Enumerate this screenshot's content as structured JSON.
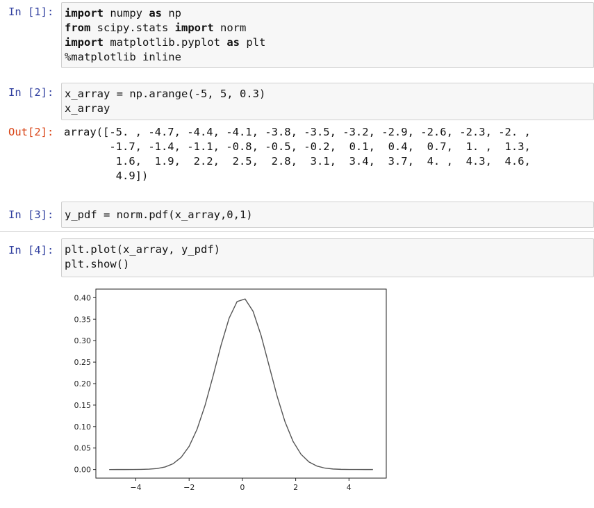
{
  "cells": [
    {
      "prompt": "In [1]:",
      "lines": [
        [
          {
            "t": "import",
            "kw": true
          },
          {
            "t": " numpy "
          },
          {
            "t": "as",
            "kw": true
          },
          {
            "t": " np"
          }
        ],
        [
          {
            "t": "from",
            "kw": true
          },
          {
            "t": " scipy.stats "
          },
          {
            "t": "import",
            "kw": true
          },
          {
            "t": " norm"
          }
        ],
        [
          {
            "t": "import",
            "kw": true
          },
          {
            "t": " matplotlib.pyplot "
          },
          {
            "t": "as",
            "kw": true
          },
          {
            "t": " plt"
          }
        ],
        [
          {
            "t": "%matplotlib inline"
          }
        ]
      ]
    },
    {
      "prompt": "In [2]:",
      "lines": [
        [
          {
            "t": "x_array = np.arange(-5, 5, 0.3)"
          }
        ],
        [
          {
            "t": "x_array"
          }
        ]
      ],
      "output_prompt": "Out[2]:",
      "output_lines": [
        "array([-5. , -4.7, -4.4, -4.1, -3.8, -3.5, -3.2, -2.9, -2.6, -2.3, -2. ,",
        "       -1.7, -1.4, -1.1, -0.8, -0.5, -0.2,  0.1,  0.4,  0.7,  1. ,  1.3,",
        "        1.6,  1.9,  2.2,  2.5,  2.8,  3.1,  3.4,  3.7,  4. ,  4.3,  4.6,",
        "        4.9])"
      ]
    },
    {
      "prompt": "In [3]:",
      "lines": [
        [
          {
            "t": "y_pdf = norm.pdf(x_array,0,1)"
          }
        ]
      ]
    },
    {
      "prompt": "In [4]:",
      "lines": [
        [
          {
            "t": "plt.plot(x_array, y_pdf)"
          }
        ],
        [
          {
            "t": "plt.show()"
          }
        ]
      ]
    }
  ],
  "chart_data": {
    "type": "line",
    "line_color": "#555555",
    "xlim": [
      -5.5,
      5.4
    ],
    "ylim": [
      -0.02,
      0.42
    ],
    "xticks": [
      -4,
      -2,
      0,
      2,
      4
    ],
    "xtick_labels": [
      "−4",
      "−2",
      "0",
      "2",
      "4"
    ],
    "yticks": [
      0.0,
      0.05,
      0.1,
      0.15,
      0.2,
      0.25,
      0.3,
      0.35,
      0.4
    ],
    "ytick_labels": [
      "0.00",
      "0.05",
      "0.10",
      "0.15",
      "0.20",
      "0.25",
      "0.30",
      "0.35",
      "0.40"
    ],
    "x": [
      -5.0,
      -4.7,
      -4.4,
      -4.1,
      -3.8,
      -3.5,
      -3.2,
      -2.9,
      -2.6,
      -2.3,
      -2.0,
      -1.7,
      -1.4,
      -1.1,
      -0.8,
      -0.5,
      -0.2,
      0.1,
      0.4,
      0.7,
      1.0,
      1.3,
      1.6,
      1.9,
      2.2,
      2.5,
      2.8,
      3.1,
      3.4,
      3.7,
      4.0,
      4.3,
      4.6,
      4.9
    ],
    "y": [
      1.5e-06,
      6.3e-06,
      2.32e-05,
      8.93e-05,
      0.0002919,
      0.0008727,
      0.0023841,
      0.0059525,
      0.013583,
      0.028327,
      0.053991,
      0.094049,
      0.149727,
      0.2178522,
      0.2896916,
      0.3520653,
      0.3910427,
      0.3969525,
      0.3682701,
      0.3122539,
      0.2419707,
      0.1713686,
      0.1109208,
      0.0656158,
      0.0354746,
      0.0175283,
      0.0079155,
      0.0032668,
      0.0012322,
      0.0004248,
      0.0001338,
      3.85e-05,
      1.01e-05,
      2.4e-06
    ]
  }
}
